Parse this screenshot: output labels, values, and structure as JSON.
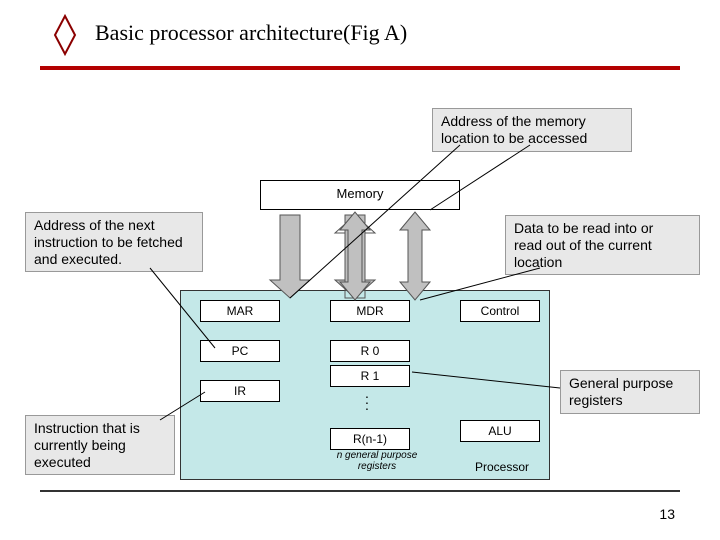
{
  "title": "Basic processor architecture(Fig A)",
  "callouts": {
    "top_right": "Address of the memory\nlocation to be accessed",
    "left": "Address of the next\ninstruction to be fetched\nand executed.",
    "right": "Data to be read into or\nread out of the current\nlocation",
    "bottom_right": "General purpose\nregisters",
    "bottom_left": "Instruction that is\ncurrently being\nexecuted"
  },
  "memory_label": "Memory",
  "boxes": {
    "mar": "MAR",
    "mdr": "MDR",
    "pc": "PC",
    "r0": "R 0",
    "r1": "R 1",
    "ir": "IR",
    "rn1": "R(n-1)",
    "control": "Control",
    "alu": "ALU"
  },
  "registers_caption": "n general purpose\nregisters",
  "processor_label": "Processor",
  "page_number": "13",
  "colors": {
    "rule": "#b30000",
    "processor_bg": "#c4e8e8",
    "callout_bg": "#e8e8e8",
    "arrow_fill": "#c0c0c0",
    "diamond_fill": "#ffffff",
    "diamond_stroke": "#8b0000"
  }
}
